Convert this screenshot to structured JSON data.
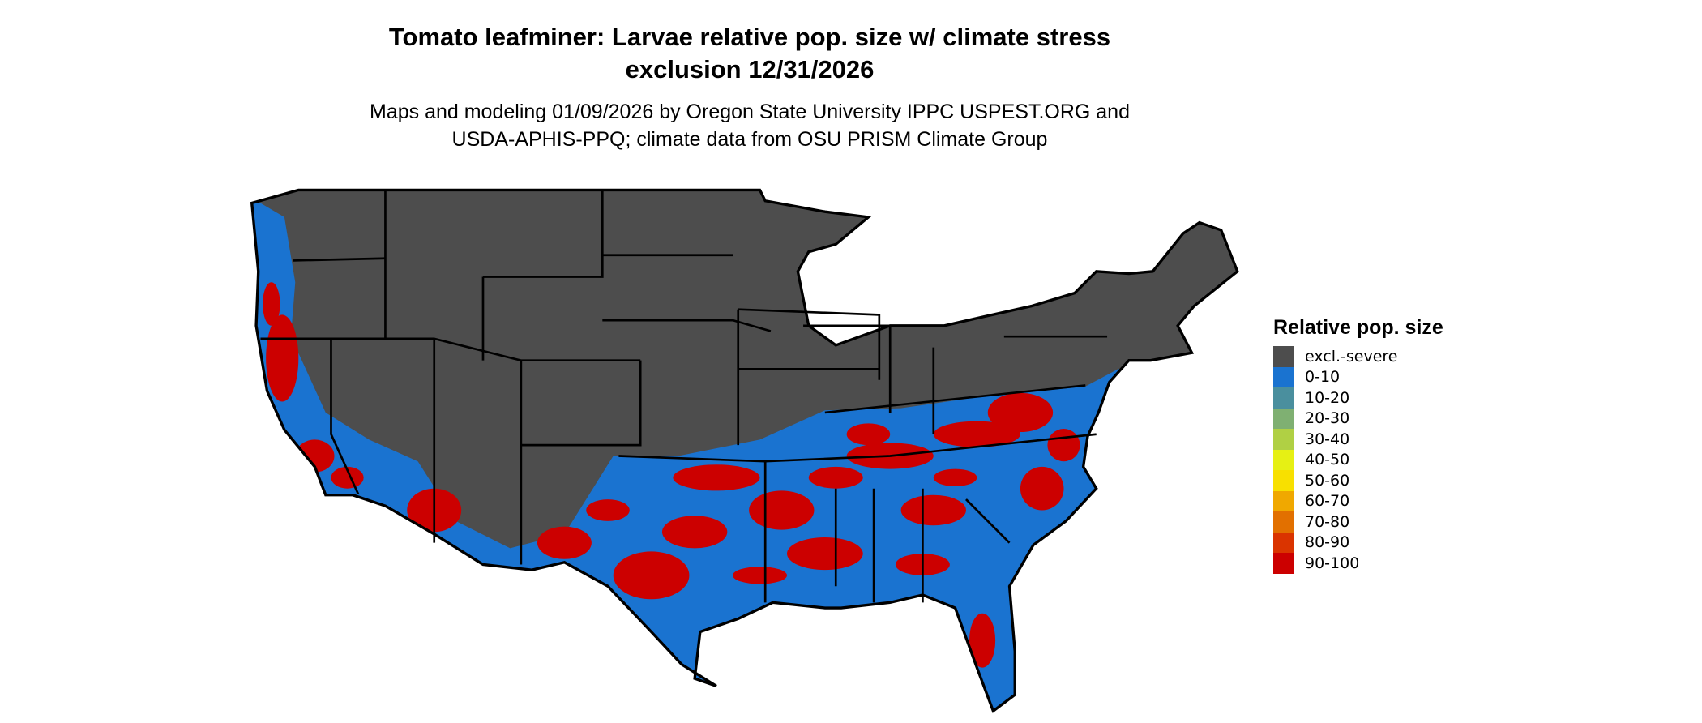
{
  "title": {
    "line1": "Tomato leafminer: Larvae relative pop. size w/ climate stress",
    "line2": "exclusion 12/31/2026"
  },
  "subtitle": {
    "line1": "Maps and modeling 01/09/2026 by Oregon State University IPPC USPEST.ORG and",
    "line2": "USDA-APHIS-PPQ; climate data from OSU PRISM Climate Group"
  },
  "legend": {
    "title": "Relative pop. size",
    "items": [
      {
        "label": "excl.-severe",
        "color": "#4d4d4d"
      },
      {
        "label": "0-10",
        "color": "#1a73d0"
      },
      {
        "label": "10-20",
        "color": "#4a8f9e"
      },
      {
        "label": "20-30",
        "color": "#7fb072"
      },
      {
        "label": "30-40",
        "color": "#b0d044"
      },
      {
        "label": "40-50",
        "color": "#e6f014"
      },
      {
        "label": "50-60",
        "color": "#f8e000"
      },
      {
        "label": "60-70",
        "color": "#f0a800"
      },
      {
        "label": "70-80",
        "color": "#e27000"
      },
      {
        "label": "80-90",
        "color": "#da3400"
      },
      {
        "label": "90-100",
        "color": "#cc0000"
      }
    ]
  },
  "map": {
    "region": "Contiguous United States",
    "colors": {
      "excluded": "#4d4d4d",
      "low": "#1a73d0",
      "high": "#cc0000",
      "border": "#000000"
    }
  }
}
